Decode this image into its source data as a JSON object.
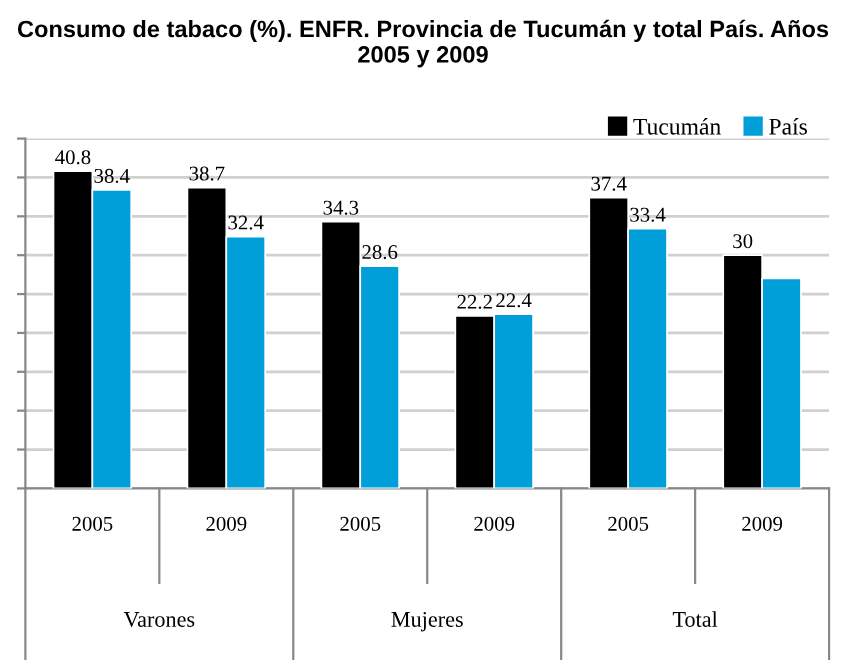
{
  "chart_data": {
    "type": "bar",
    "title": "Consumo de tabaco (%). ENFR. Provincia de Tucumán y total País. Años 2005 y 2009",
    "categories": [
      "2005",
      "2009",
      "2005",
      "2009",
      "2005",
      "2009"
    ],
    "annotations": [
      "Varones",
      "Mujeres",
      "Total"
    ],
    "series": [
      {
        "name": "Tucumán",
        "color": "#000000",
        "values": [
          40.8,
          38.7,
          34.3,
          22.2,
          37.4,
          30
        ],
        "value_labels": [
          "40.8",
          "38.7",
          "34.3",
          "22.2",
          "37.4",
          "30"
        ]
      },
      {
        "name": "País",
        "color": "#009fd9",
        "values": [
          38.4,
          32.4,
          28.6,
          22.4,
          33.4,
          27
        ],
        "value_labels": [
          "38.4",
          "32.4",
          "28.6",
          "22.4",
          "33.4",
          null
        ]
      }
    ],
    "ylim": [
      0,
      45
    ],
    "yticks": [
      {
        "value": 0,
        "label": null
      },
      {
        "value": 5,
        "label": null
      },
      {
        "value": 10,
        "label": null
      },
      {
        "value": 15,
        "label": null
      },
      {
        "value": 20,
        "label": null
      },
      {
        "value": 25,
        "label": null
      },
      {
        "value": 30,
        "label": null
      },
      {
        "value": 35,
        "label": null
      },
      {
        "value": 40,
        "label": null
      },
      {
        "value": 45,
        "label": null
      }
    ],
    "grid": "y",
    "legend": "top right"
  }
}
